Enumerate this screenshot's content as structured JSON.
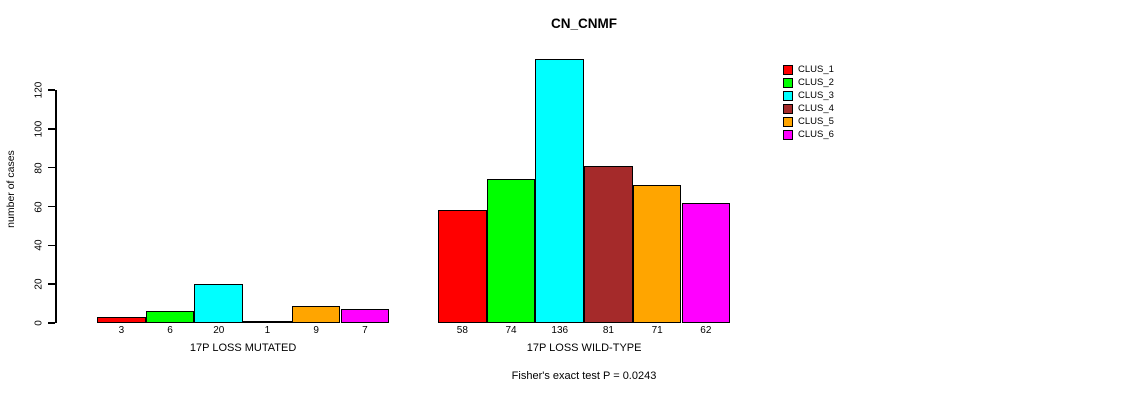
{
  "title": "CN_CNMF",
  "footer": "Fisher's exact test P = 0.0243",
  "chart_data": {
    "type": "bar",
    "title": "CN_CNMF",
    "xlabel": "",
    "ylabel": "number of cases",
    "ylim": [
      0,
      136
    ],
    "yticks": [
      0,
      20,
      40,
      60,
      80,
      100,
      120
    ],
    "grid": false,
    "legend_position": "top-right",
    "groups": [
      {
        "label": "17P LOSS MUTATED",
        "values": [
          3,
          6,
          20,
          1,
          9,
          7
        ]
      },
      {
        "label": "17P LOSS WILD-TYPE",
        "values": [
          58,
          74,
          136,
          81,
          71,
          62
        ]
      }
    ],
    "series": [
      {
        "name": "CLUS_1",
        "color": "#FF0000",
        "values": [
          3,
          58
        ]
      },
      {
        "name": "CLUS_2",
        "color": "#00FF00",
        "values": [
          6,
          74
        ]
      },
      {
        "name": "CLUS_3",
        "color": "#00FFFF",
        "values": [
          20,
          136
        ]
      },
      {
        "name": "CLUS_4",
        "color": "#A52A2A",
        "values": [
          1,
          81
        ]
      },
      {
        "name": "CLUS_5",
        "color": "#FFA500",
        "values": [
          9,
          71
        ]
      },
      {
        "name": "CLUS_6",
        "color": "#FF00FF",
        "values": [
          7,
          62
        ]
      }
    ],
    "bar_value_labels_shown": true,
    "annotation": "Fisher's exact test P = 0.0243"
  }
}
